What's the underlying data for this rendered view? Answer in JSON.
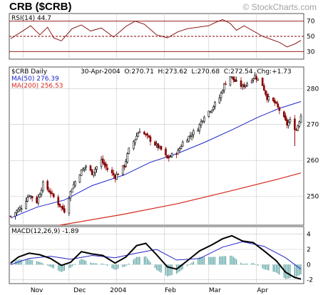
{
  "header": {
    "title": "CRB ($CRB)",
    "brand": "© StockCharts.com"
  },
  "colors": {
    "price_up": "#000000",
    "price_down": "#8b0000",
    "ma50": "#1c23c9",
    "ma200": "#d42a1c",
    "rsi_line": "#800000",
    "rsi_bands": "#8b0000",
    "macd": "#000000",
    "signal": "#2323c9",
    "histogram": "#4e9c9c",
    "panel_bg": "#ffffff",
    "grid": "#c8c8c8",
    "frame": "#555555"
  },
  "rsi_panel": {
    "label": "RSI(14) 44.7",
    "ticks": [
      "70",
      "50",
      "30"
    ]
  },
  "price_panel": {
    "symbol_label": "$CRB Daily",
    "ohlc_line": "30-Apr-2004  O:270.71  H:273.62  L:270.68  C:272.54  Chg:+1.73",
    "ma50_label": "MA(50) 276.39",
    "ma200_label": "MA(200) 256.53",
    "ticks": [
      "280",
      "270",
      "260",
      "250"
    ]
  },
  "macd_panel": {
    "label": "MACD(12,26,9) -1.89",
    "ticks": [
      "4",
      "2",
      "0",
      "-2"
    ]
  },
  "x_axis": {
    "labels": [
      "Nov",
      "Dec",
      "2004",
      "Feb",
      "Mar",
      "Apr"
    ]
  },
  "chart_data": {
    "type": "line",
    "title": "CRB ($CRB)",
    "subtitle": "$CRB Daily",
    "x_range": [
      "2003-10-24",
      "2004-04-30"
    ],
    "price_ylim": [
      242,
      286
    ],
    "last_bar": {
      "date": "30-Apr-2004",
      "open": 270.71,
      "high": 273.62,
      "low": 270.68,
      "close": 272.54,
      "change": 1.73
    },
    "price_close_path": [
      [
        "2003-10-24",
        244.5
      ],
      [
        "2003-10-31",
        247.0
      ],
      [
        "2003-11-05",
        250.5
      ],
      [
        "2003-11-10",
        248.5
      ],
      [
        "2003-11-14",
        253.5
      ],
      [
        "2003-11-19",
        251.0
      ],
      [
        "2003-11-24",
        248.0
      ],
      [
        "2003-11-28",
        246.0
      ],
      [
        "2003-12-03",
        252.5
      ],
      [
        "2003-12-08",
        256.5
      ],
      [
        "2003-12-12",
        258.5
      ],
      [
        "2003-12-16",
        256.5
      ],
      [
        "2003-12-22",
        260.0
      ],
      [
        "2003-12-26",
        257.5
      ],
      [
        "2003-12-31",
        255.5
      ],
      [
        "2004-01-06",
        258.5
      ],
      [
        "2004-01-09",
        263.0
      ],
      [
        "2004-01-13",
        266.0
      ],
      [
        "2004-01-16",
        268.5
      ],
      [
        "2004-01-21",
        266.5
      ],
      [
        "2004-01-26",
        264.5
      ],
      [
        "2004-01-30",
        263.0
      ],
      [
        "2004-02-03",
        260.5
      ],
      [
        "2004-02-06",
        261.5
      ],
      [
        "2004-02-10",
        262.5
      ],
      [
        "2004-02-13",
        265.0
      ],
      [
        "2004-02-18",
        267.0
      ],
      [
        "2004-02-23",
        269.0
      ],
      [
        "2004-02-27",
        272.5
      ],
      [
        "2004-03-03",
        274.5
      ],
      [
        "2004-03-08",
        277.5
      ],
      [
        "2004-03-11",
        281.0
      ],
      [
        "2004-03-15",
        283.5
      ],
      [
        "2004-03-18",
        282.0
      ],
      [
        "2004-03-23",
        280.5
      ],
      [
        "2004-03-26",
        281.5
      ],
      [
        "2004-03-31",
        283.5
      ],
      [
        "2004-04-05",
        281.0
      ],
      [
        "2004-04-08",
        277.5
      ],
      [
        "2004-04-13",
        276.0
      ],
      [
        "2004-04-16",
        274.0
      ],
      [
        "2004-04-21",
        270.0
      ],
      [
        "2004-04-23",
        271.0
      ],
      [
        "2004-04-27",
        268.5
      ],
      [
        "2004-04-30",
        272.54
      ]
    ],
    "series": [
      {
        "name": "MA(50)",
        "values": [
          [
            "2003-10-24",
            244.0
          ],
          [
            "2003-11-10",
            247.0
          ],
          [
            "2003-11-28",
            249.0
          ],
          [
            "2003-12-16",
            253.0
          ],
          [
            "2004-01-06",
            256.0
          ],
          [
            "2004-01-23",
            259.5
          ],
          [
            "2004-02-10",
            262.0
          ],
          [
            "2004-02-27",
            265.0
          ],
          [
            "2004-03-16",
            268.5
          ],
          [
            "2004-04-02",
            272.0
          ],
          [
            "2004-04-16",
            274.5
          ],
          [
            "2004-04-30",
            276.39
          ]
        ]
      },
      {
        "name": "MA(200)",
        "values": [
          [
            "2003-11-25",
            242.0
          ],
          [
            "2004-01-05",
            245.0
          ],
          [
            "2004-02-10",
            248.0
          ],
          [
            "2004-03-15",
            251.5
          ],
          [
            "2004-04-15",
            254.8
          ],
          [
            "2004-04-30",
            256.53
          ]
        ]
      }
    ],
    "rsi": {
      "ylim": [
        20,
        80
      ],
      "levels": [
        70,
        50,
        30
      ],
      "values": [
        [
          "2003-10-24",
          47
        ],
        [
          "2003-10-31",
          56
        ],
        [
          "2003-11-06",
          64
        ],
        [
          "2003-11-12",
          52
        ],
        [
          "2003-11-17",
          62
        ],
        [
          "2003-11-21",
          48
        ],
        [
          "2003-11-26",
          44
        ],
        [
          "2003-12-03",
          60
        ],
        [
          "2003-12-09",
          65
        ],
        [
          "2003-12-15",
          57
        ],
        [
          "2003-12-22",
          61
        ],
        [
          "2003-12-30",
          49
        ],
        [
          "2004-01-07",
          63
        ],
        [
          "2004-01-13",
          70
        ],
        [
          "2004-01-19",
          66
        ],
        [
          "2004-01-27",
          52
        ],
        [
          "2004-02-03",
          48
        ],
        [
          "2004-02-10",
          56
        ],
        [
          "2004-02-16",
          60
        ],
        [
          "2004-02-23",
          62
        ],
        [
          "2004-03-01",
          64
        ],
        [
          "2004-03-05",
          68
        ],
        [
          "2004-03-10",
          72
        ],
        [
          "2004-03-15",
          67
        ],
        [
          "2004-03-19",
          58
        ],
        [
          "2004-03-24",
          64
        ],
        [
          "2004-03-30",
          57
        ],
        [
          "2004-04-05",
          50
        ],
        [
          "2004-04-12",
          45
        ],
        [
          "2004-04-16",
          42
        ],
        [
          "2004-04-21",
          36
        ],
        [
          "2004-04-26",
          40
        ],
        [
          "2004-04-30",
          44.7
        ]
      ]
    },
    "macd": {
      "ylim": [
        -2.5,
        5
      ],
      "ticks": [
        4,
        2,
        0,
        -2
      ],
      "macd_values": [
        [
          "2003-10-24",
          0.2
        ],
        [
          "2003-10-29",
          1.0
        ],
        [
          "2003-11-05",
          1.5
        ],
        [
          "2003-11-12",
          1.3
        ],
        [
          "2003-11-19",
          0.8
        ],
        [
          "2003-11-26",
          -0.1
        ],
        [
          "2003-12-02",
          0.3
        ],
        [
          "2003-12-09",
          1.7
        ],
        [
          "2003-12-16",
          1.4
        ],
        [
          "2003-12-23",
          1.2
        ],
        [
          "2003-12-31",
          0.2
        ],
        [
          "2004-01-07",
          1.0
        ],
        [
          "2004-01-14",
          2.5
        ],
        [
          "2004-01-20",
          2.8
        ],
        [
          "2004-01-27",
          1.3
        ],
        [
          "2004-02-03",
          -0.3
        ],
        [
          "2004-02-09",
          -0.6
        ],
        [
          "2004-02-16",
          0.5
        ],
        [
          "2004-02-24",
          1.8
        ],
        [
          "2004-03-03",
          2.6
        ],
        [
          "2004-03-10",
          3.4
        ],
        [
          "2004-03-16",
          3.8
        ],
        [
          "2004-03-23",
          3.1
        ],
        [
          "2004-03-30",
          2.9
        ],
        [
          "2004-04-06",
          1.8
        ],
        [
          "2004-04-14",
          0.5
        ],
        [
          "2004-04-20",
          -1.0
        ],
        [
          "2004-04-26",
          -1.7
        ],
        [
          "2004-04-30",
          -1.89
        ]
      ],
      "signal_values": [
        [
          "2003-10-24",
          0.0
        ],
        [
          "2003-11-05",
          0.8
        ],
        [
          "2003-11-19",
          1.1
        ],
        [
          "2003-12-02",
          0.7
        ],
        [
          "2003-12-16",
          1.2
        ],
        [
          "2003-12-31",
          0.9
        ],
        [
          "2004-01-14",
          1.5
        ],
        [
          "2004-01-27",
          2.0
        ],
        [
          "2004-02-09",
          0.6
        ],
        [
          "2004-02-24",
          0.8
        ],
        [
          "2004-03-10",
          2.3
        ],
        [
          "2004-03-23",
          3.0
        ],
        [
          "2004-04-06",
          2.4
        ],
        [
          "2004-04-20",
          0.9
        ],
        [
          "2004-04-30",
          -0.6
        ]
      ]
    }
  }
}
